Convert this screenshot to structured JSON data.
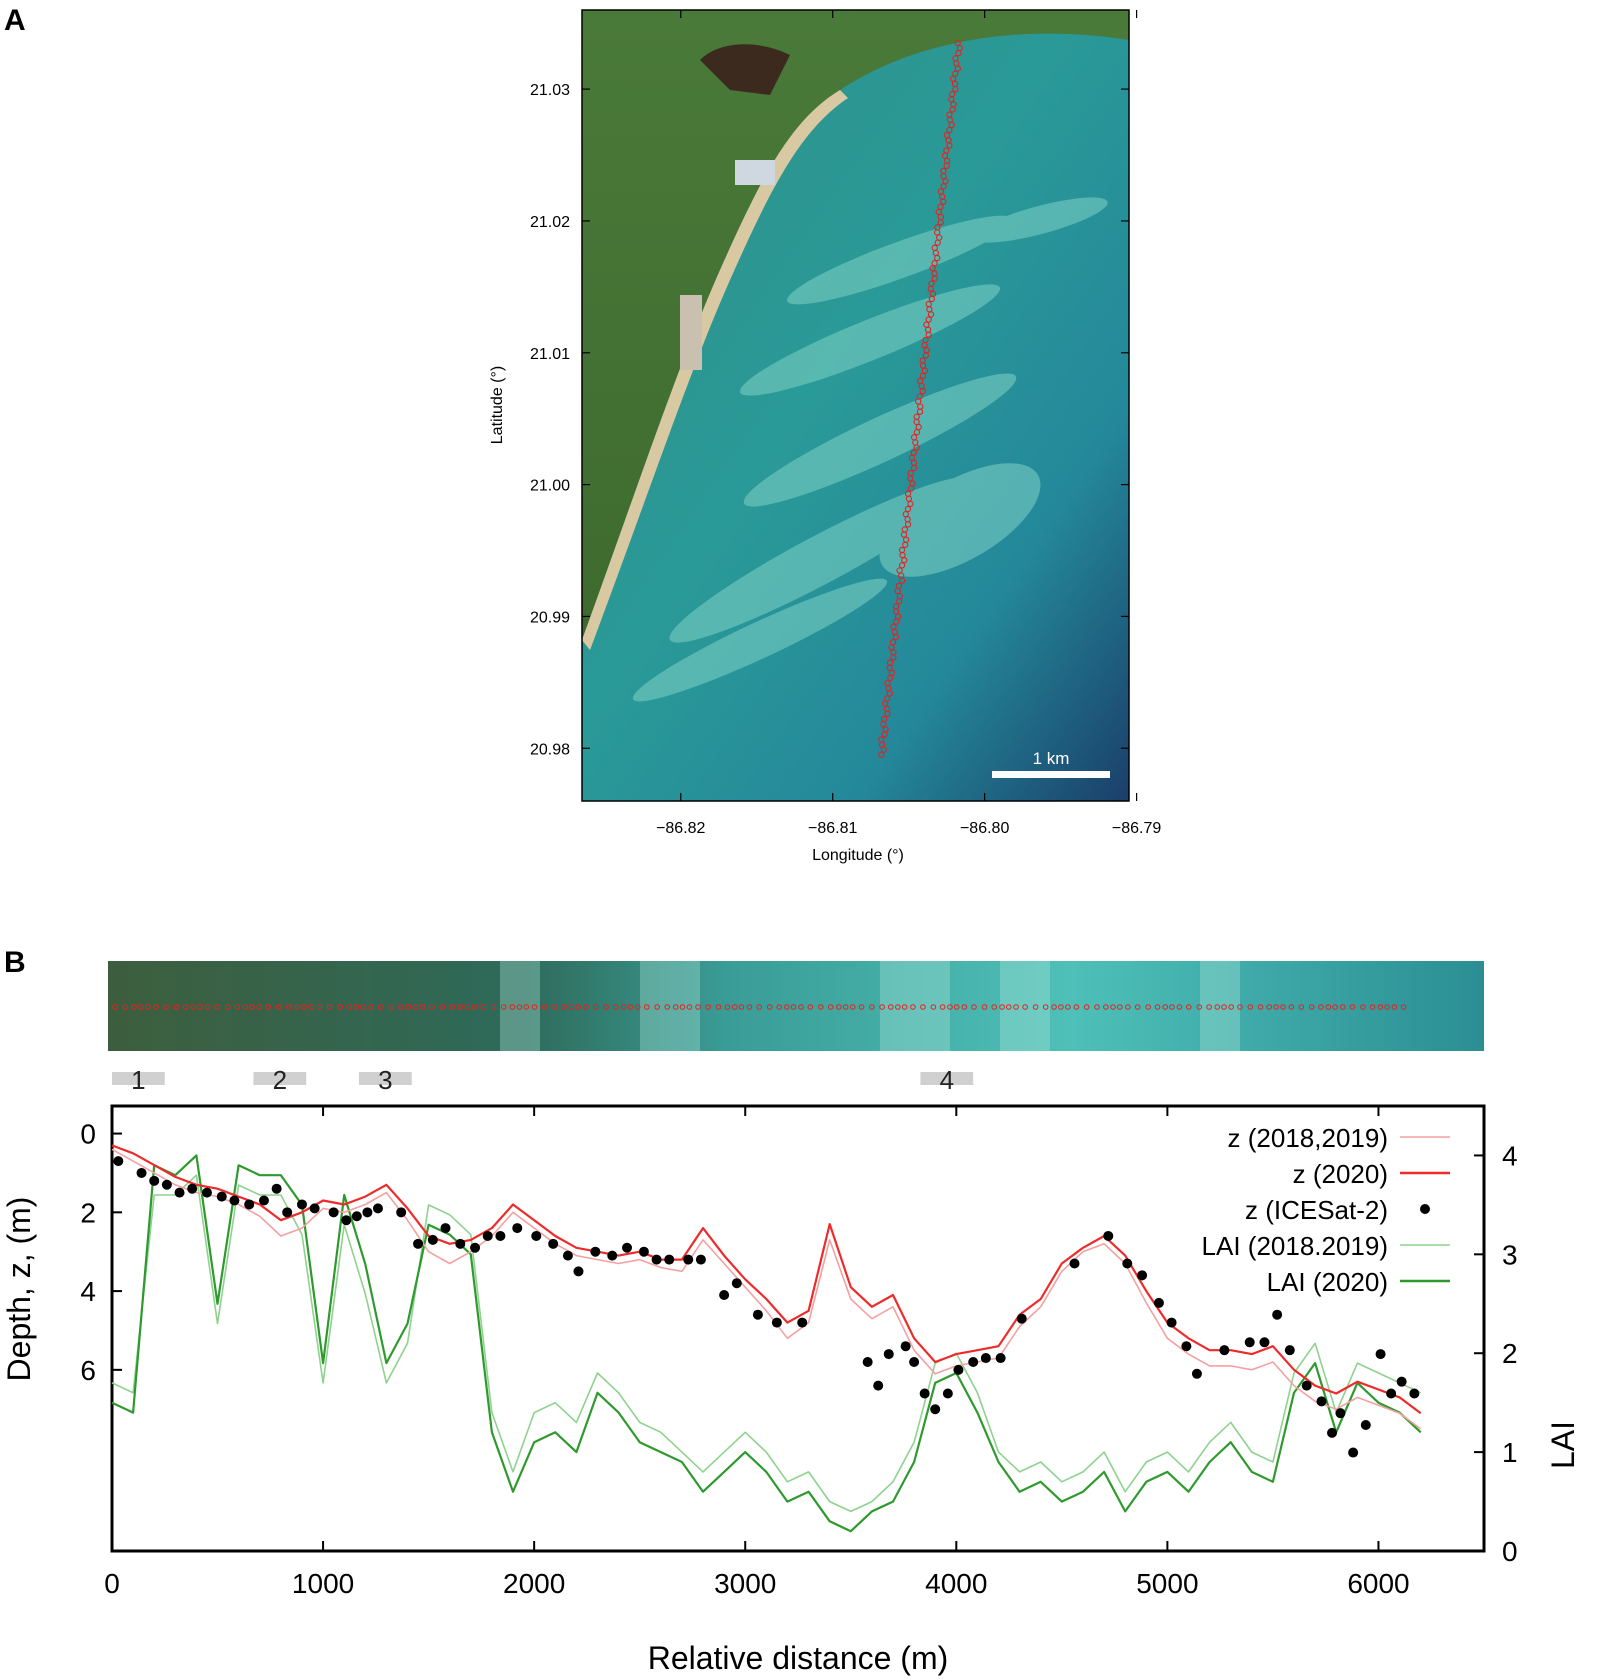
{
  "panel_labels": [
    "A",
    "B"
  ],
  "map": {
    "xlabel": "Longitude (°)",
    "ylabel": "Latitude (°)",
    "x_ticks": [
      -86.82,
      -86.81,
      -86.8,
      -86.79
    ],
    "x_tick_labels": [
      "−86.82",
      "−86.81",
      "−86.80",
      "−86.79"
    ],
    "y_ticks": [
      21.03,
      21.02,
      21.01,
      21.0,
      20.99,
      20.98
    ],
    "y_tick_labels": [
      "21.03",
      "21.02",
      "21.01",
      "21.00",
      "20.99",
      "20.98"
    ],
    "xlim": [
      -86.8265,
      -86.7905
    ],
    "ylim": [
      20.976,
      21.036
    ],
    "scale_bar_label": "1 km",
    "track_start": [
      -86.8068,
      20.9795
    ],
    "track_end": [
      -86.8017,
      21.0335
    ],
    "track_color": "#e8201e"
  },
  "segments": [
    {
      "label": "1",
      "x_start": 0,
      "x_end": 250
    },
    {
      "label": "2",
      "x_start": 670,
      "x_end": 920
    },
    {
      "label": "3",
      "x_start": 1170,
      "x_end": 1420
    },
    {
      "label": "4",
      "x_start": 3830,
      "x_end": 4080
    }
  ],
  "chart_data": {
    "type": "line",
    "xlabel": "Relative distance (m)",
    "ylabel_left": "Depth, z, (m)",
    "ylabel_right": "LAI",
    "xlim": [
      0,
      6500
    ],
    "ylim_depth": [
      -0.7,
      10.6
    ],
    "ylim_lai": [
      0,
      4.5
    ],
    "x_ticks": [
      0,
      1000,
      2000,
      3000,
      4000,
      5000,
      6000
    ],
    "y_ticks_depth": [
      0,
      2,
      4,
      6
    ],
    "y_ticks_lai": [
      0,
      1,
      2,
      3,
      4
    ],
    "legend_position": "top-right",
    "legend": [
      "z (2018,2019)",
      "z (2020)",
      "z (ICESat-2)",
      "LAI (2018.2019)",
      "LAI (2020)"
    ],
    "colors": {
      "z_2020": "#ee2a2a",
      "z_2018_2019": "#f4a0a0",
      "icesat": "#000000",
      "lai_2020": "#2e9a2e",
      "lai_2018_2019": "#8ed28e"
    },
    "series": [
      {
        "name": "z (2020)",
        "x": [
          0,
          100,
          200,
          300,
          400,
          500,
          600,
          700,
          800,
          900,
          1000,
          1100,
          1200,
          1300,
          1400,
          1500,
          1600,
          1700,
          1800,
          1900,
          2000,
          2100,
          2200,
          2300,
          2400,
          2500,
          2600,
          2700,
          2800,
          2900,
          3000,
          3100,
          3200,
          3300,
          3400,
          3500,
          3600,
          3700,
          3800,
          3900,
          4000,
          4100,
          4200,
          4300,
          4400,
          4500,
          4600,
          4700,
          4800,
          4900,
          5000,
          5100,
          5200,
          5300,
          5400,
          5500,
          5600,
          5700,
          5800,
          5900,
          6000,
          6100,
          6200
        ],
        "values": [
          0.3,
          0.5,
          0.8,
          1.1,
          1.3,
          1.4,
          1.6,
          1.8,
          2.2,
          2.0,
          1.7,
          1.8,
          1.6,
          1.3,
          1.9,
          2.6,
          2.8,
          2.7,
          2.4,
          1.8,
          2.2,
          2.6,
          2.9,
          3.0,
          3.1,
          3.0,
          3.2,
          3.2,
          2.4,
          3.1,
          3.7,
          4.2,
          4.8,
          4.5,
          2.3,
          3.9,
          4.4,
          4.1,
          5.2,
          5.8,
          5.6,
          5.5,
          5.4,
          4.6,
          4.2,
          3.3,
          2.9,
          2.6,
          3.1,
          4.0,
          4.8,
          5.2,
          5.5,
          5.5,
          5.6,
          5.4,
          6.0,
          6.4,
          6.6,
          6.3,
          6.5,
          6.7,
          7.1
        ]
      },
      {
        "name": "z (2018,2019)",
        "x": [
          0,
          100,
          200,
          300,
          400,
          500,
          600,
          700,
          800,
          900,
          1000,
          1100,
          1200,
          1300,
          1400,
          1500,
          1600,
          1700,
          1800,
          1900,
          2000,
          2100,
          2200,
          2300,
          2400,
          2500,
          2600,
          2700,
          2800,
          2900,
          3000,
          3100,
          3200,
          3300,
          3400,
          3500,
          3600,
          3700,
          3800,
          3900,
          4000,
          4100,
          4200,
          4300,
          4400,
          4500,
          4600,
          4700,
          4800,
          4900,
          5000,
          5100,
          5200,
          5300,
          5400,
          5500,
          5600,
          5700,
          5800,
          5900,
          6000,
          6100,
          6200
        ],
        "values": [
          0.4,
          0.7,
          1.0,
          1.3,
          1.5,
          1.6,
          1.8,
          2.1,
          2.6,
          2.4,
          1.9,
          2.0,
          1.8,
          1.5,
          2.2,
          3.0,
          3.3,
          3.0,
          2.6,
          2.0,
          2.4,
          2.8,
          3.1,
          3.2,
          3.3,
          3.2,
          3.4,
          3.5,
          2.7,
          3.3,
          3.9,
          4.5,
          5.2,
          4.8,
          2.7,
          4.2,
          4.7,
          4.4,
          5.5,
          6.1,
          5.9,
          5.8,
          5.7,
          4.9,
          4.4,
          3.5,
          3.0,
          2.8,
          3.3,
          4.3,
          5.2,
          5.6,
          5.9,
          5.9,
          6.0,
          5.8,
          6.4,
          6.8,
          7.0,
          6.7,
          6.9,
          7.1,
          7.5
        ]
      },
      {
        "name": "z (ICESat-2)",
        "points": [
          [
            30,
            0.7
          ],
          [
            140,
            1.0
          ],
          [
            200,
            1.2
          ],
          [
            260,
            1.3
          ],
          [
            320,
            1.5
          ],
          [
            380,
            1.4
          ],
          [
            450,
            1.5
          ],
          [
            520,
            1.6
          ],
          [
            580,
            1.7
          ],
          [
            650,
            1.8
          ],
          [
            720,
            1.7
          ],
          [
            780,
            1.4
          ],
          [
            830,
            2.0
          ],
          [
            900,
            1.8
          ],
          [
            960,
            1.9
          ],
          [
            1050,
            2.0
          ],
          [
            1110,
            2.2
          ],
          [
            1160,
            2.1
          ],
          [
            1210,
            2.0
          ],
          [
            1260,
            1.9
          ],
          [
            1370,
            2.0
          ],
          [
            1450,
            2.8
          ],
          [
            1520,
            2.7
          ],
          [
            1580,
            2.4
          ],
          [
            1650,
            2.8
          ],
          [
            1720,
            2.9
          ],
          [
            1780,
            2.6
          ],
          [
            1840,
            2.6
          ],
          [
            1920,
            2.4
          ],
          [
            2010,
            2.6
          ],
          [
            2090,
            2.8
          ],
          [
            2160,
            3.1
          ],
          [
            2210,
            3.5
          ],
          [
            2290,
            3.0
          ],
          [
            2370,
            3.1
          ],
          [
            2440,
            2.9
          ],
          [
            2520,
            3.0
          ],
          [
            2580,
            3.2
          ],
          [
            2640,
            3.2
          ],
          [
            2730,
            3.2
          ],
          [
            2790,
            3.2
          ],
          [
            2900,
            4.1
          ],
          [
            2960,
            3.8
          ],
          [
            3060,
            4.6
          ],
          [
            3150,
            4.8
          ],
          [
            3270,
            4.8
          ],
          [
            3580,
            5.8
          ],
          [
            3630,
            6.4
          ],
          [
            3680,
            5.6
          ],
          [
            3760,
            5.4
          ],
          [
            3800,
            5.8
          ],
          [
            3850,
            6.6
          ],
          [
            3900,
            7.0
          ],
          [
            3960,
            6.6
          ],
          [
            4010,
            6.0
          ],
          [
            4080,
            5.8
          ],
          [
            4140,
            5.7
          ],
          [
            4210,
            5.7
          ],
          [
            4310,
            4.7
          ],
          [
            4560,
            3.3
          ],
          [
            4720,
            2.6
          ],
          [
            4810,
            3.3
          ],
          [
            4880,
            3.6
          ],
          [
            4960,
            4.3
          ],
          [
            5020,
            4.8
          ],
          [
            5090,
            5.4
          ],
          [
            5140,
            6.1
          ],
          [
            5270,
            5.5
          ],
          [
            5390,
            5.3
          ],
          [
            5460,
            5.3
          ],
          [
            5520,
            4.6
          ],
          [
            5580,
            5.5
          ],
          [
            5660,
            6.4
          ],
          [
            5730,
            6.8
          ],
          [
            5780,
            7.6
          ],
          [
            5820,
            7.1
          ],
          [
            5880,
            8.1
          ],
          [
            5940,
            7.4
          ],
          [
            6010,
            5.6
          ],
          [
            6060,
            6.6
          ],
          [
            6110,
            6.3
          ],
          [
            6170,
            6.6
          ]
        ]
      },
      {
        "name": "LAI (2020)",
        "x": [
          0,
          100,
          200,
          300,
          400,
          500,
          600,
          700,
          800,
          900,
          1000,
          1100,
          1200,
          1300,
          1400,
          1500,
          1600,
          1700,
          1800,
          1900,
          2000,
          2100,
          2200,
          2300,
          2400,
          2500,
          2600,
          2700,
          2800,
          2900,
          3000,
          3100,
          3200,
          3300,
          3400,
          3500,
          3600,
          3700,
          3800,
          3900,
          4000,
          4100,
          4200,
          4300,
          4400,
          4500,
          4600,
          4700,
          4800,
          4900,
          5000,
          5100,
          5200,
          5300,
          5400,
          5500,
          5600,
          5700,
          5800,
          5900,
          6000,
          6100,
          6200
        ],
        "values": [
          1.5,
          1.4,
          3.9,
          3.8,
          4.0,
          2.5,
          3.9,
          3.8,
          3.8,
          3.5,
          1.9,
          3.6,
          2.9,
          1.9,
          2.3,
          3.3,
          3.2,
          3.0,
          1.2,
          0.6,
          1.1,
          1.2,
          1.0,
          1.6,
          1.4,
          1.1,
          1.0,
          0.9,
          0.6,
          0.8,
          1.0,
          0.8,
          0.5,
          0.6,
          0.3,
          0.2,
          0.4,
          0.5,
          0.9,
          1.7,
          1.8,
          1.4,
          0.9,
          0.6,
          0.7,
          0.5,
          0.6,
          0.8,
          0.4,
          0.7,
          0.8,
          0.6,
          0.9,
          1.1,
          0.8,
          0.7,
          1.6,
          1.9,
          1.2,
          1.7,
          1.5,
          1.4,
          1.2
        ]
      },
      {
        "name": "LAI (2018.2019)",
        "x": [
          0,
          100,
          200,
          300,
          400,
          500,
          600,
          700,
          800,
          900,
          1000,
          1100,
          1200,
          1300,
          1400,
          1500,
          1600,
          1700,
          1800,
          1900,
          2000,
          2100,
          2200,
          2300,
          2400,
          2500,
          2600,
          2700,
          2800,
          2900,
          3000,
          3100,
          3200,
          3300,
          3400,
          3500,
          3600,
          3700,
          3800,
          3900,
          4000,
          4100,
          4200,
          4300,
          4400,
          4500,
          4600,
          4700,
          4800,
          4900,
          5000,
          5100,
          5200,
          5300,
          5400,
          5500,
          5600,
          5700,
          5800,
          5900,
          6000,
          6100,
          6200
        ],
        "values": [
          1.7,
          1.6,
          3.6,
          3.6,
          3.8,
          2.3,
          3.7,
          3.6,
          3.6,
          3.2,
          1.7,
          3.3,
          2.6,
          1.7,
          2.1,
          3.5,
          3.4,
          3.2,
          1.4,
          0.8,
          1.4,
          1.5,
          1.3,
          1.8,
          1.6,
          1.3,
          1.2,
          1.0,
          0.8,
          1.0,
          1.2,
          1.0,
          0.7,
          0.8,
          0.5,
          0.4,
          0.5,
          0.7,
          1.1,
          1.9,
          2.0,
          1.6,
          1.0,
          0.8,
          0.9,
          0.7,
          0.8,
          1.0,
          0.6,
          0.9,
          1.0,
          0.8,
          1.1,
          1.3,
          1.0,
          0.9,
          1.8,
          2.1,
          1.4,
          1.9,
          1.8,
          1.7,
          1.6
        ]
      }
    ]
  }
}
